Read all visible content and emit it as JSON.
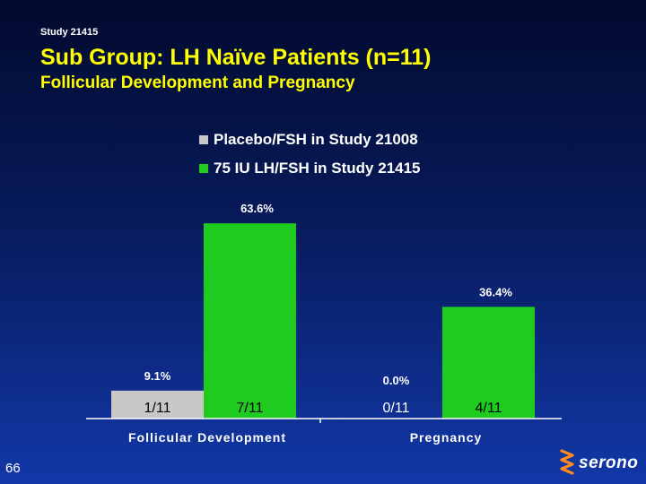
{
  "header": {
    "study_label": "Study 21415",
    "title": "Sub Group:  LH Naïve Patients (n=11)",
    "subtitle": "Follicular Development and Pregnancy"
  },
  "page_number": "66",
  "logo": {
    "text": "serono"
  },
  "colors": {
    "series_placebo": "#c8c8c8",
    "series_lh": "#1ecb1e",
    "title": "#ffff00",
    "text": "#ffffff"
  },
  "chart_data": {
    "type": "bar",
    "title": "",
    "xlabel": "",
    "ylabel": "",
    "ylim": [
      0,
      70
    ],
    "grid": false,
    "legend_position": "top",
    "categories": [
      "Follicular Development",
      "Pregnancy"
    ],
    "series": [
      {
        "name": "Placebo/FSH in Study 21008",
        "values": [
          9.1,
          0.0
        ],
        "value_labels": [
          "9.1%",
          "0.0%"
        ],
        "count_labels": [
          "1/11",
          "0/11"
        ]
      },
      {
        "name": "75 IU LH/FSH in Study 21415",
        "values": [
          63.6,
          36.4
        ],
        "value_labels": [
          "63.6%",
          "36.4%"
        ],
        "count_labels": [
          "7/11",
          "4/11"
        ]
      }
    ]
  }
}
